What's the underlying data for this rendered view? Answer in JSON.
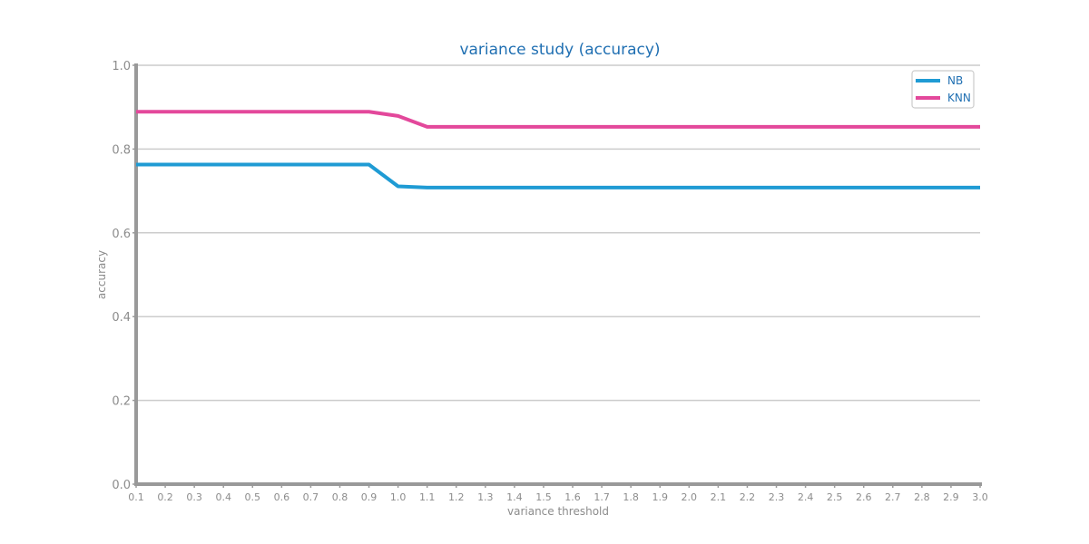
{
  "chart_data": {
    "type": "line",
    "title": "variance study (accuracy)",
    "xlabel": "variance threshold",
    "ylabel": "accuracy",
    "xlim": [
      0.1,
      3.0
    ],
    "ylim": [
      0.0,
      1.0
    ],
    "x_ticks": [
      "0.1",
      "0.2",
      "0.3",
      "0.4",
      "0.5",
      "0.6",
      "0.7",
      "0.8",
      "0.9",
      "1.0",
      "1.1",
      "1.2",
      "1.3",
      "1.4",
      "1.5",
      "1.6",
      "1.7",
      "1.8",
      "1.9",
      "2.0",
      "2.1",
      "2.2",
      "2.3",
      "2.4",
      "2.5",
      "2.6",
      "2.7",
      "2.8",
      "2.9",
      "3.0"
    ],
    "y_ticks": [
      "0.0",
      "0.2",
      "0.4",
      "0.6",
      "0.8",
      "1.0"
    ],
    "grid": "horizontal",
    "legend_position": "top-right",
    "x": [
      0.1,
      0.2,
      0.3,
      0.4,
      0.5,
      0.6,
      0.7,
      0.8,
      0.9,
      1.0,
      1.1,
      1.2,
      1.3,
      1.4,
      1.5,
      1.6,
      1.7,
      1.8,
      1.9,
      2.0,
      2.1,
      2.2,
      2.3,
      2.4,
      2.5,
      2.6,
      2.7,
      2.8,
      2.9,
      3.0
    ],
    "series": [
      {
        "name": "NB",
        "color": "#1f9bd4",
        "values": [
          0.763,
          0.763,
          0.763,
          0.763,
          0.763,
          0.763,
          0.763,
          0.763,
          0.763,
          0.711,
          0.708,
          0.708,
          0.708,
          0.708,
          0.708,
          0.708,
          0.708,
          0.708,
          0.708,
          0.708,
          0.708,
          0.708,
          0.708,
          0.708,
          0.708,
          0.708,
          0.708,
          0.708,
          0.708,
          0.708
        ]
      },
      {
        "name": "KNN",
        "color": "#e3489b",
        "values": [
          0.889,
          0.889,
          0.889,
          0.889,
          0.889,
          0.889,
          0.889,
          0.889,
          0.889,
          0.879,
          0.853,
          0.853,
          0.853,
          0.853,
          0.853,
          0.853,
          0.853,
          0.853,
          0.853,
          0.853,
          0.853,
          0.853,
          0.853,
          0.853,
          0.853,
          0.853,
          0.853,
          0.853,
          0.853,
          0.853
        ]
      }
    ]
  }
}
